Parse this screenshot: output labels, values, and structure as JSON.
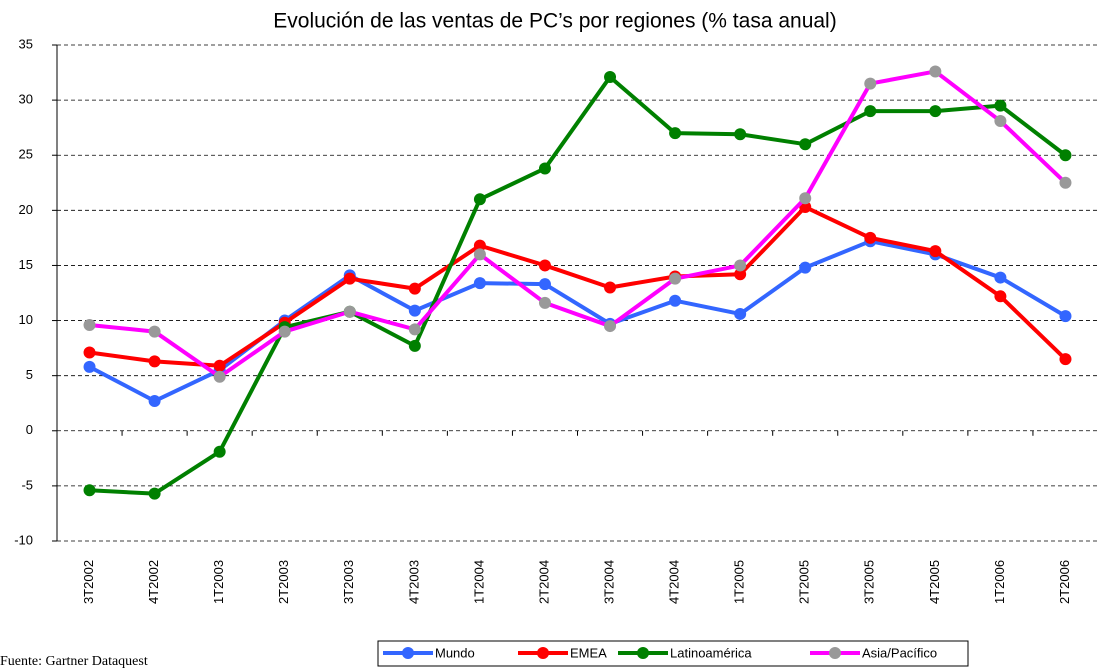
{
  "chart_data": {
    "type": "line",
    "title": "Evolución de las ventas de PC’s por regiones (% tasa anual)",
    "source": "Fuente: Gartner Dataquest",
    "categories": [
      "3T2002",
      "4T2002",
      "1T2003",
      "2T2003",
      "3T2003",
      "4T2003",
      "1T2004",
      "2T2004",
      "3T2004",
      "4T2004",
      "1T2005",
      "2T2005",
      "3T2005",
      "4T2005",
      "1T2006",
      "2T2006"
    ],
    "series": [
      {
        "name": "Mundo",
        "color": "#3366ff",
        "marker_color": "#3366ff",
        "values": [
          5.8,
          2.7,
          5.5,
          10.0,
          14.1,
          10.9,
          13.4,
          13.3,
          9.7,
          11.8,
          10.6,
          14.8,
          17.2,
          16.0,
          13.9,
          10.4
        ]
      },
      {
        "name": "EMEA",
        "color": "#ff0000",
        "marker_color": "#ff0000",
        "values": [
          7.1,
          6.3,
          5.9,
          9.8,
          13.8,
          12.9,
          16.8,
          15.0,
          13.0,
          14.0,
          14.2,
          20.3,
          17.5,
          16.3,
          12.2,
          6.5
        ]
      },
      {
        "name": "Latinoamérica",
        "color": "#008000",
        "marker_color": "#008000",
        "values": [
          -5.4,
          -5.7,
          -1.9,
          9.4,
          10.8,
          7.7,
          21.0,
          23.8,
          32.1,
          27.0,
          26.9,
          26.0,
          29.0,
          29.0,
          29.5,
          25.0
        ]
      },
      {
        "name": "Asia/Pacífico",
        "color": "#ff00ff",
        "marker_color": "#999999",
        "values": [
          9.6,
          9.0,
          4.9,
          9.0,
          10.8,
          9.2,
          16.0,
          11.6,
          9.5,
          13.8,
          15.0,
          21.1,
          31.5,
          32.6,
          28.1,
          22.5
        ]
      }
    ],
    "ylim": [
      -10,
      35
    ],
    "yticks": [
      -10,
      -5,
      0,
      5,
      10,
      15,
      20,
      25,
      30,
      35
    ],
    "grid": true
  }
}
